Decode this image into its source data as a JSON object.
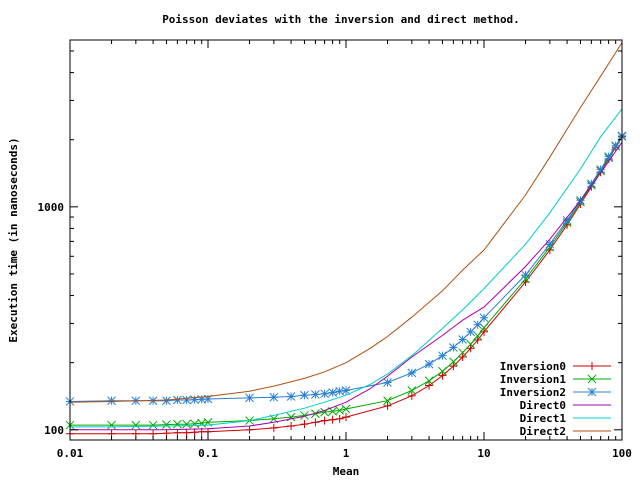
{
  "chart_data": {
    "type": "line",
    "title": "Poisson deviates with the inversion and direct method.",
    "xlabel": "Mean",
    "ylabel": "Execution time (in nanoseconds)",
    "xscale": "log",
    "yscale": "log",
    "xlim": [
      0.01,
      100
    ],
    "ylim": [
      90,
      5600
    ],
    "x_ticks": [
      0.01,
      0.1,
      1,
      10,
      100
    ],
    "x_tick_labels": [
      "0.01",
      "0.1",
      "1",
      "10",
      "100"
    ],
    "y_ticks": [
      100,
      1000
    ],
    "y_tick_labels": [
      "100",
      "1000"
    ],
    "grid": false,
    "legend_position": "bottom-right",
    "series": [
      {
        "name": "Inversion0",
        "color": "#cc0000",
        "marker": "plus",
        "x": [
          0.01,
          0.02,
          0.03,
          0.04,
          0.05,
          0.06,
          0.07,
          0.08,
          0.09,
          0.1,
          0.2,
          0.3,
          0.4,
          0.5,
          0.6,
          0.7,
          0.8,
          0.9,
          1,
          2,
          3,
          4,
          5,
          6,
          7,
          8,
          9,
          10,
          20,
          30,
          40,
          50,
          60,
          70,
          80,
          90,
          100
        ],
        "y": [
          96,
          96,
          96,
          96,
          96.5,
          97,
          97,
          97.5,
          98,
          98,
          100,
          102,
          104,
          106,
          108,
          110,
          111,
          112,
          114,
          128,
          142,
          158,
          175,
          193,
          212,
          232,
          253,
          275,
          460,
          640,
          830,
          1030,
          1230,
          1430,
          1640,
          1850,
          2060
        ]
      },
      {
        "name": "Inversion1",
        "color": "#00aa00",
        "marker": "cross",
        "x": [
          0.01,
          0.02,
          0.03,
          0.04,
          0.05,
          0.06,
          0.07,
          0.08,
          0.09,
          0.1,
          0.2,
          0.3,
          0.4,
          0.5,
          0.6,
          0.7,
          0.8,
          0.9,
          1,
          2,
          3,
          4,
          5,
          6,
          7,
          8,
          9,
          10,
          20,
          30,
          40,
          50,
          60,
          70,
          80,
          90,
          100
        ],
        "y": [
          105,
          105,
          105,
          105,
          105.5,
          106,
          106,
          106.5,
          107,
          108,
          110,
          112,
          114,
          116,
          118,
          120,
          121,
          122,
          124,
          135,
          150,
          166,
          183,
          202,
          222,
          242,
          264,
          287,
          475,
          660,
          850,
          1050,
          1250,
          1450,
          1660,
          1870,
          2070
        ]
      },
      {
        "name": "Inversion2",
        "color": "#2a7fd4",
        "marker": "star",
        "x": [
          0.01,
          0.02,
          0.03,
          0.04,
          0.05,
          0.06,
          0.07,
          0.08,
          0.09,
          0.1,
          0.2,
          0.3,
          0.4,
          0.5,
          0.6,
          0.7,
          0.8,
          0.9,
          1,
          2,
          3,
          4,
          5,
          6,
          7,
          8,
          9,
          10,
          20,
          30,
          40,
          50,
          60,
          70,
          80,
          90,
          100
        ],
        "y": [
          134,
          135,
          135,
          135,
          135,
          136,
          136,
          136.5,
          137,
          137.5,
          139,
          140,
          141,
          143,
          144,
          145,
          147,
          149,
          150,
          163,
          180,
          197,
          215,
          234,
          254,
          275,
          296,
          318,
          495,
          680,
          870,
          1070,
          1270,
          1470,
          1680,
          1880,
          2080
        ]
      },
      {
        "name": "Direct0",
        "color": "#aa00aa",
        "marker": "none",
        "x": [
          0.01,
          0.02,
          0.05,
          0.1,
          0.2,
          0.3,
          0.5,
          0.7,
          1,
          1.5,
          2,
          3,
          5,
          7,
          10,
          20,
          30,
          50,
          70,
          100
        ],
        "y": [
          100,
          100,
          100,
          101,
          104,
          108,
          115,
          122,
          133,
          153,
          174,
          212,
          265,
          310,
          355,
          540,
          715,
          1070,
          1420,
          1950
        ]
      },
      {
        "name": "Direct1",
        "color": "#00cccc",
        "marker": "none",
        "x": [
          0.01,
          0.02,
          0.05,
          0.1,
          0.2,
          0.3,
          0.5,
          0.7,
          1,
          1.5,
          2,
          3,
          5,
          7,
          10,
          20,
          30,
          50,
          70,
          100
        ],
        "y": [
          103,
          103,
          104,
          105,
          110,
          116,
          125,
          133,
          143,
          160,
          178,
          215,
          285,
          345,
          430,
          680,
          940,
          1480,
          2060,
          2750
        ]
      },
      {
        "name": "Direct2",
        "color": "#b05010",
        "marker": "none",
        "x": [
          0.01,
          0.02,
          0.05,
          0.1,
          0.2,
          0.3,
          0.5,
          0.7,
          1,
          1.5,
          2,
          3,
          5,
          7,
          10,
          20,
          30,
          50,
          70,
          100
        ],
        "y": [
          133,
          134,
          136,
          141,
          149,
          157,
          170,
          182,
          200,
          232,
          262,
          320,
          420,
          520,
          640,
          1130,
          1670,
          2790,
          3850,
          5450
        ]
      }
    ]
  }
}
